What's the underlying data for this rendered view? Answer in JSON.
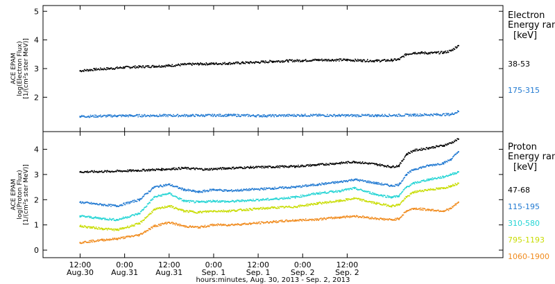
{
  "chart_data": [
    {
      "type": "scatter",
      "ylabel": [
        "ACE EPAM",
        "log(Electron Flux)",
        "[1/(cm²s ster MeV)]"
      ],
      "ylim": [
        0.8,
        5.2
      ],
      "yticks": [
        2,
        3,
        4,
        5
      ],
      "legend_title": [
        "Electron",
        "Energy ran"
      ],
      "legend_unit": "[keV]",
      "series": [
        {
          "name": "38-53",
          "color": "#000000",
          "x": [
            0,
            4,
            8,
            12,
            16,
            20,
            24,
            28,
            32,
            36,
            40,
            44,
            48,
            52,
            56,
            60,
            64,
            68,
            72,
            76,
            80,
            84,
            86,
            88,
            90,
            92,
            94,
            96,
            98,
            100,
            102
          ],
          "y": [
            2.92,
            2.97,
            3.0,
            3.04,
            3.06,
            3.08,
            3.1,
            3.14,
            3.16,
            3.17,
            3.18,
            3.2,
            3.22,
            3.25,
            3.27,
            3.28,
            3.3,
            3.3,
            3.3,
            3.28,
            3.27,
            3.29,
            3.32,
            3.5,
            3.55,
            3.55,
            3.54,
            3.55,
            3.56,
            3.62,
            3.8
          ]
        },
        {
          "name": "175-315",
          "color": "#1f78d1",
          "x": [
            0,
            10,
            20,
            30,
            40,
            50,
            60,
            70,
            80,
            90,
            100,
            102
          ],
          "y": [
            1.33,
            1.35,
            1.36,
            1.36,
            1.37,
            1.35,
            1.37,
            1.36,
            1.36,
            1.38,
            1.4,
            1.5
          ]
        }
      ]
    },
    {
      "type": "scatter",
      "ylabel": [
        "ACE EPAM",
        "log(Proton Flux)",
        "[1/(cm²s ster MeV)]"
      ],
      "ylim": [
        -0.3,
        4.7
      ],
      "yticks": [
        0,
        1,
        2,
        3,
        4
      ],
      "legend_title": [
        "Proton",
        "Energy ran"
      ],
      "legend_unit": "[keV]",
      "series": [
        {
          "name": "47-68",
          "color": "#000000",
          "x": [
            0,
            8,
            14,
            22,
            28,
            34,
            40,
            46,
            52,
            58,
            64,
            70,
            74,
            80,
            84,
            86,
            88,
            90,
            94,
            98,
            100,
            102
          ],
          "y": [
            3.1,
            3.12,
            3.15,
            3.2,
            3.25,
            3.2,
            3.25,
            3.28,
            3.3,
            3.32,
            3.38,
            3.45,
            3.5,
            3.4,
            3.3,
            3.35,
            3.8,
            3.95,
            4.05,
            4.15,
            4.25,
            4.4
          ]
        },
        {
          "name": "115-195",
          "color": "#1f78d1",
          "x": [
            0,
            6,
            10,
            16,
            20,
            24,
            28,
            32,
            36,
            40,
            46,
            52,
            58,
            64,
            70,
            74,
            80,
            84,
            86,
            88,
            90,
            94,
            98,
            100,
            102
          ],
          "y": [
            1.9,
            1.8,
            1.75,
            2.0,
            2.5,
            2.6,
            2.4,
            2.3,
            2.4,
            2.35,
            2.4,
            2.45,
            2.5,
            2.6,
            2.7,
            2.8,
            2.65,
            2.55,
            2.6,
            3.0,
            3.2,
            3.35,
            3.45,
            3.6,
            3.9
          ]
        },
        {
          "name": "310-580",
          "color": "#22d4d4",
          "x": [
            0,
            6,
            10,
            16,
            20,
            24,
            28,
            32,
            36,
            40,
            46,
            52,
            58,
            64,
            70,
            74,
            80,
            84,
            86,
            88,
            90,
            94,
            98,
            100,
            102
          ],
          "y": [
            1.35,
            1.25,
            1.2,
            1.45,
            2.1,
            2.25,
            1.95,
            1.9,
            1.95,
            1.92,
            1.98,
            2.02,
            2.1,
            2.25,
            2.35,
            2.45,
            2.2,
            2.1,
            2.15,
            2.5,
            2.65,
            2.8,
            2.9,
            3.0,
            3.1
          ]
        },
        {
          "name": "795-1193",
          "color": "#c8dc00",
          "x": [
            0,
            6,
            10,
            16,
            20,
            24,
            28,
            32,
            36,
            40,
            46,
            52,
            58,
            64,
            70,
            74,
            80,
            84,
            86,
            88,
            90,
            94,
            98,
            100,
            102
          ],
          "y": [
            0.95,
            0.85,
            0.8,
            1.05,
            1.6,
            1.75,
            1.55,
            1.5,
            1.55,
            1.55,
            1.62,
            1.68,
            1.72,
            1.85,
            1.95,
            2.05,
            1.85,
            1.75,
            1.8,
            2.1,
            2.3,
            2.4,
            2.45,
            2.55,
            2.65
          ]
        },
        {
          "name": "1060-1900",
          "color": "#f08a1c",
          "x": [
            0,
            6,
            10,
            16,
            20,
            24,
            28,
            32,
            36,
            40,
            46,
            52,
            58,
            64,
            70,
            74,
            80,
            84,
            86,
            88,
            90,
            94,
            98,
            100,
            102
          ],
          "y": [
            0.3,
            0.4,
            0.45,
            0.6,
            0.95,
            1.1,
            0.95,
            0.9,
            1.0,
            1.0,
            1.05,
            1.12,
            1.18,
            1.22,
            1.3,
            1.35,
            1.25,
            1.2,
            1.25,
            1.55,
            1.65,
            1.6,
            1.55,
            1.65,
            1.9
          ]
        }
      ]
    }
  ],
  "time_axis": {
    "xlabel": "hours:minutes, Aug. 30, 2013 - Sep. 2, 2013",
    "xlim": [
      -10,
      114
    ],
    "ticks": [
      {
        "x": 0,
        "time": "12:00",
        "date": "Aug.30"
      },
      {
        "x": 12,
        "time": "0:00",
        "date": "Aug.31"
      },
      {
        "x": 24,
        "time": "12:00",
        "date": "Aug.31"
      },
      {
        "x": 36,
        "time": "0:00",
        "date": "Sep. 1"
      },
      {
        "x": 48,
        "time": "12:00",
        "date": "Sep. 1"
      },
      {
        "x": 60,
        "time": "0:00",
        "date": "Sep. 2"
      },
      {
        "x": 72,
        "time": "12:00",
        "date": "Sep. 2"
      }
    ]
  },
  "colors": {
    "frame": "#000000",
    "background": "#ffffff"
  }
}
